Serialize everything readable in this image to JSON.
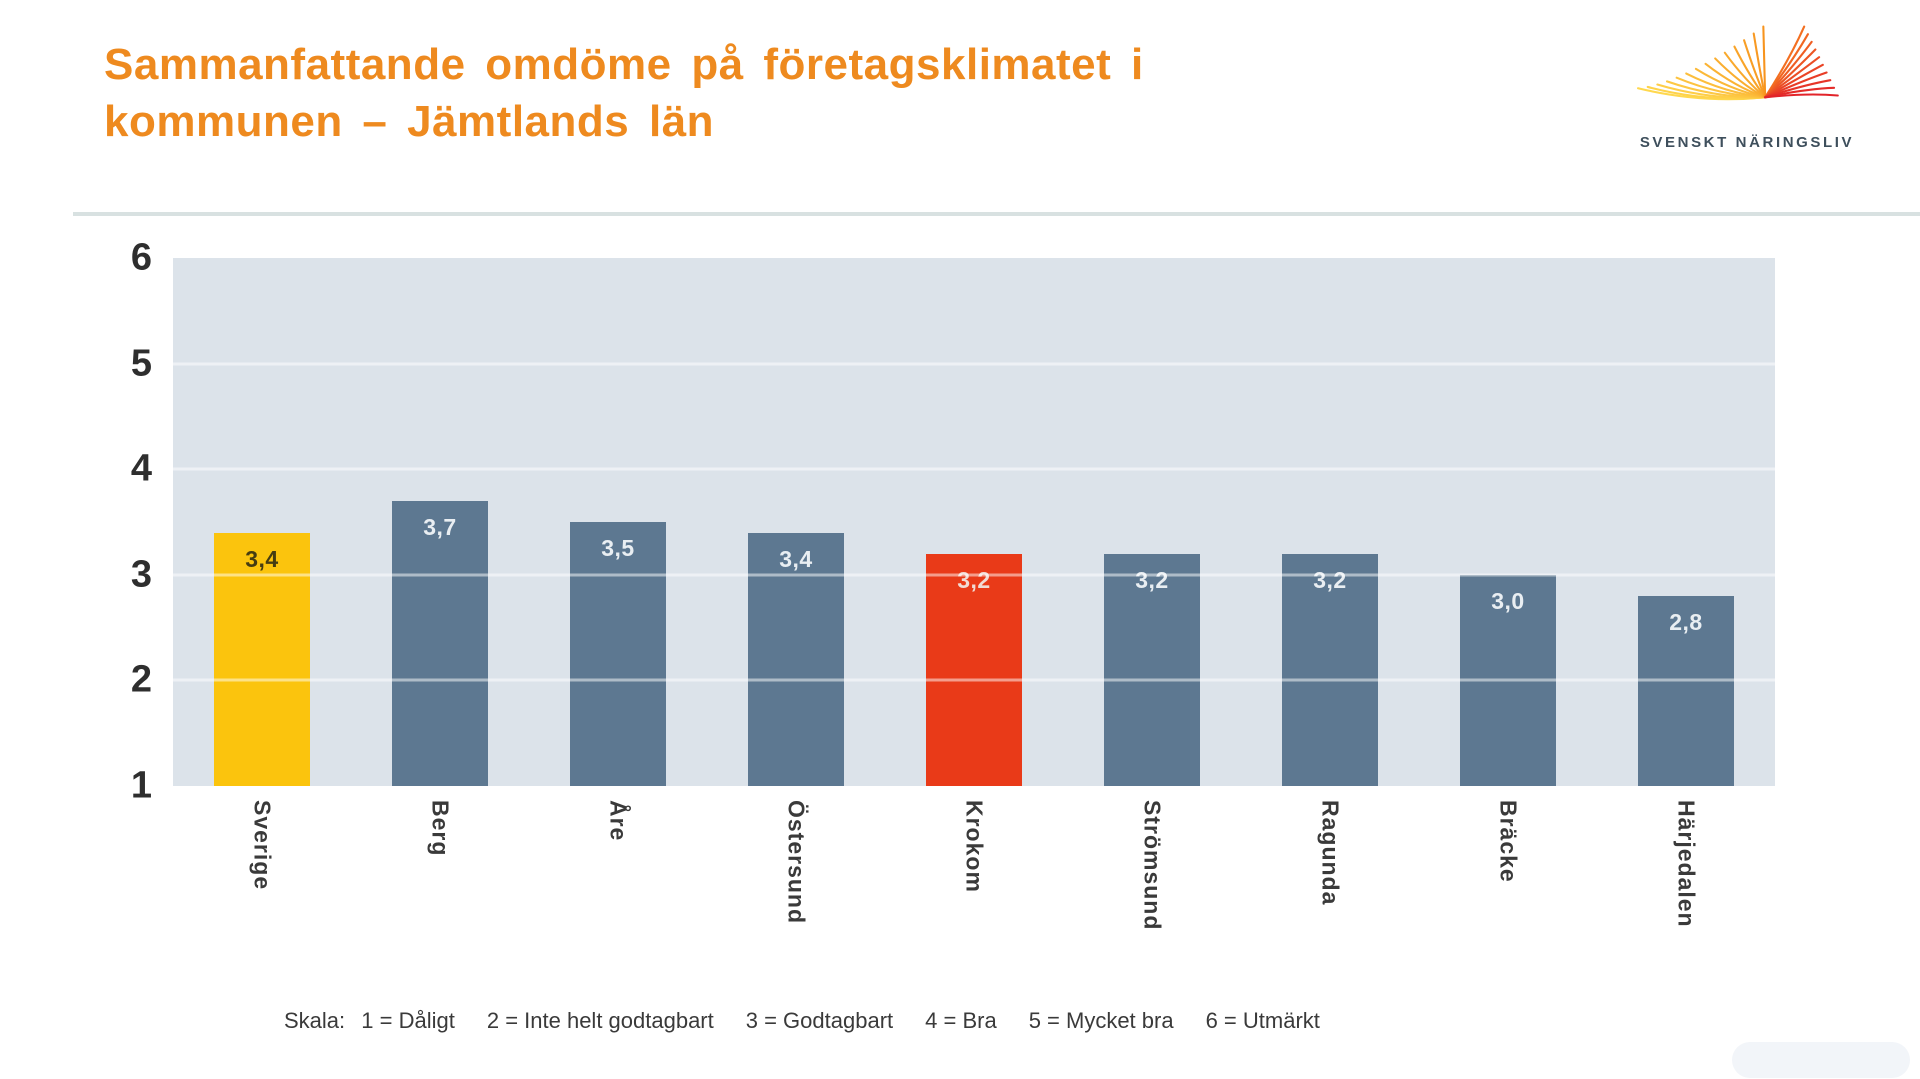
{
  "header": {
    "title_line1": "Sammanfattande omdöme på företagsklimatet i",
    "title_line2": "kommunen – Jämtlands län",
    "title_color": "#EE8A1F"
  },
  "logo": {
    "name": "Svenskt Näringsliv",
    "text": "SVENSKT NÄRINGSLIV",
    "text_color": "#3E4F5C",
    "wing_colors": {
      "left_start": "#FFD84E",
      "left_end": "#F7941E",
      "right_start": "#F36F21",
      "right_end": "#E2242A"
    }
  },
  "chart_data": {
    "type": "bar",
    "title": "Sammanfattande omdöme på företagsklimatet i kommunen – Jämtlands län",
    "categories": [
      "Sverige",
      "Berg",
      "Åre",
      "Östersund",
      "Krokom",
      "Strömsund",
      "Ragunda",
      "Bräcke",
      "Härjedalen"
    ],
    "values": [
      3.4,
      3.7,
      3.5,
      3.4,
      3.2,
      3.2,
      3.2,
      3.0,
      2.8
    ],
    "value_labels": [
      "3,4",
      "3,7",
      "3,5",
      "3,4",
      "3,2",
      "3,2",
      "3,2",
      "3,0",
      "2,8"
    ],
    "bar_colors": [
      "#FBC40D",
      "#5D7891",
      "#5D7891",
      "#5D7891",
      "#E93A18",
      "#5D7891",
      "#5D7891",
      "#5D7891",
      "#5D7891"
    ],
    "value_label_colors": [
      "#453C12",
      "#E9EEF2",
      "#E9EEF2",
      "#E9EEF2",
      "#F1DBD4",
      "#E9EEF2",
      "#E9EEF2",
      "#E9EEF2",
      "#E9EEF2"
    ],
    "xlabel": "",
    "ylabel": "",
    "ylim": [
      1,
      6
    ],
    "yticks": [
      6,
      5,
      4,
      3,
      2,
      1
    ],
    "grid": true,
    "legend": "none",
    "plot_background": "#DCE3EA"
  },
  "footnote": {
    "label": "Skala:",
    "items": [
      "1 = Dåligt",
      "2 = Inte helt godtagbart",
      "3 = Godtagbart",
      "4 = Bra",
      "5 = Mycket bra",
      "6 = Utmärkt"
    ]
  }
}
